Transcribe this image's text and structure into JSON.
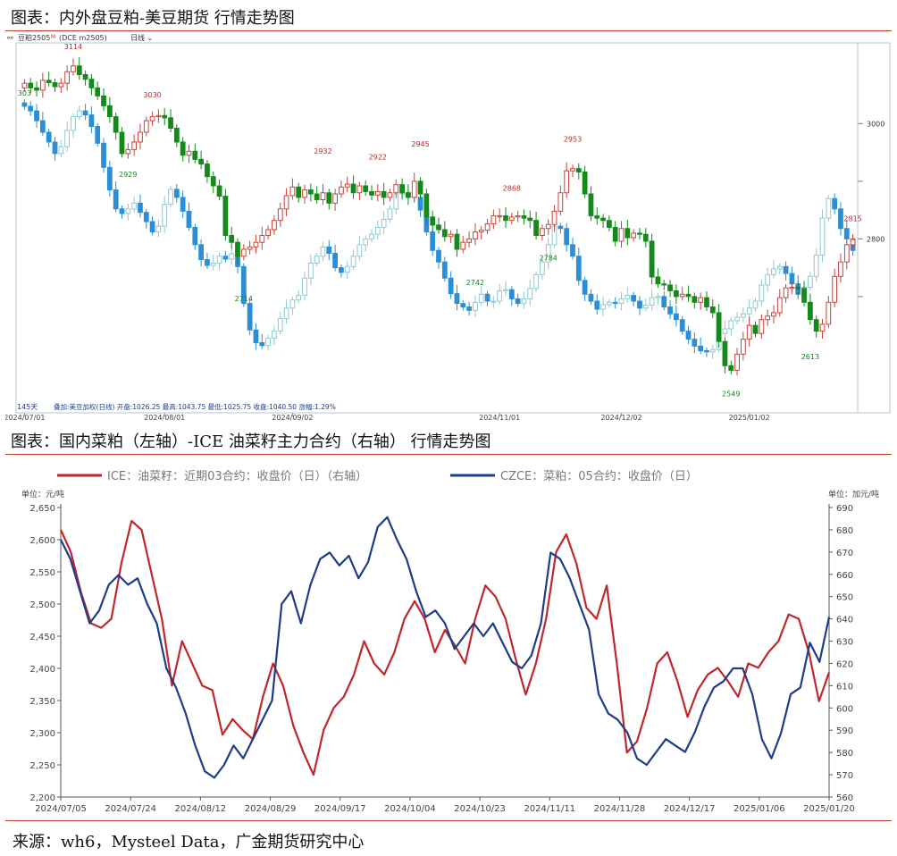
{
  "page": {
    "title1": "图表：内外盘豆粕-美豆期货 行情走势图",
    "title2": "图表：国内菜粕（左轴）-ICE 油菜籽主力合约（右轴） 行情走势图",
    "source": "来源：wh6，Mysteel Data，广金期货研究中心"
  },
  "chart_data": [
    {
      "type": "candlestick",
      "header": "豆粕2505",
      "header_sup": "M",
      "header_code": "(DCE m2505)",
      "header_period": "日线",
      "period_count": "145天",
      "overlay_info": "叠加:美豆加权(日线)  开盘:1026.25 最高:1043.75 最低:1025.75 收盘:1040.50 涨幅:1.29%",
      "y_axis_labels": [
        "3000",
        "2800"
      ],
      "y_ticks": [
        3000,
        2900,
        2800,
        2700
      ],
      "ylim": [
        2520,
        3140
      ],
      "x_labels": [
        "2024/07/01",
        "2024/08/01",
        "2024/09/02",
        "2024/11/01",
        "2024/12/02",
        "2025/01/02"
      ],
      "x_label_index": [
        0,
        23,
        44,
        78,
        98,
        119
      ],
      "annotations": [
        {
          "text": "3114",
          "index": 8,
          "type": "high"
        },
        {
          "text": "3030",
          "index": 21,
          "type": "high"
        },
        {
          "text": "2932",
          "index": 49,
          "type": "high"
        },
        {
          "text": "2922",
          "index": 58,
          "type": "high"
        },
        {
          "text": "2945",
          "index": 65,
          "type": "high"
        },
        {
          "text": "2868",
          "index": 80,
          "type": "high"
        },
        {
          "text": "2953",
          "index": 90,
          "type": "high"
        },
        {
          "text": "2815",
          "index": 136,
          "type": "high"
        },
        {
          "text": "303",
          "index": 0,
          "type": "low"
        },
        {
          "text": "2929",
          "index": 17,
          "type": "low"
        },
        {
          "text": "2714",
          "index": 36,
          "type": "low"
        },
        {
          "text": "2742",
          "index": 74,
          "type": "low"
        },
        {
          "text": "2784",
          "index": 86,
          "type": "low"
        },
        {
          "text": "2549",
          "index": 116,
          "type": "low"
        },
        {
          "text": "2613",
          "index": 129,
          "type": "low"
        }
      ],
      "series": [
        {
          "name": "豆粕2505",
          "close": [
            3070,
            3062,
            3058,
            3075,
            3071,
            3064,
            3070,
            3090,
            3100,
            3085,
            3077,
            3062,
            3048,
            3031,
            3012,
            2985,
            2948,
            2955,
            2968,
            2985,
            3005,
            3012,
            3014,
            3010,
            2992,
            2968,
            2945,
            2952,
            2938,
            2930,
            2908,
            2892,
            2874,
            2806,
            2794,
            2770,
            2782,
            2786,
            2794,
            2806,
            2816,
            2832,
            2852,
            2875,
            2890,
            2872,
            2885,
            2878,
            2868,
            2880,
            2862,
            2878,
            2890,
            2895,
            2880,
            2892,
            2882,
            2876,
            2882,
            2872,
            2880,
            2894,
            2880,
            2872,
            2900,
            2878,
            2838,
            2824,
            2816,
            2804,
            2808,
            2782,
            2794,
            2800,
            2812,
            2815,
            2826,
            2840,
            2840,
            2832,
            2838,
            2840,
            2836,
            2832,
            2806,
            2818,
            2825,
            2848,
            2880,
            2918,
            2922,
            2916,
            2878,
            2840,
            2836,
            2832,
            2820,
            2796,
            2818,
            2802,
            2810,
            2808,
            2796,
            2734,
            2722,
            2720,
            2710,
            2700,
            2704,
            2700,
            2690,
            2698,
            2682,
            2672,
            2622,
            2580,
            2572,
            2600,
            2626,
            2650,
            2636,
            2660,
            2666,
            2672,
            2698,
            2715,
            2716,
            2714,
            2690,
            2660,
            2640,
            2652,
            2690,
            2735,
            2760,
            2790,
            2799
          ]
        },
        {
          "name": "美豆加权",
          "close": [
            3030,
            3022,
            3005,
            2985,
            2968,
            2948,
            2960,
            2988,
            3012,
            3022,
            3015,
            2995,
            2966,
            2924,
            2885,
            2852,
            2844,
            2852,
            2862,
            2846,
            2830,
            2812,
            2822,
            2860,
            2886,
            2872,
            2848,
            2820,
            2790,
            2764,
            2754,
            2758,
            2770,
            2765,
            2774,
            2752,
            2688,
            2642,
            2620,
            2615,
            2628,
            2640,
            2662,
            2680,
            2694,
            2702,
            2732,
            2758,
            2770,
            2786,
            2775,
            2750,
            2742,
            2752,
            2770,
            2790,
            2800,
            2808,
            2820,
            2834,
            2852,
            2878,
            2880,
            2875,
            2872,
            2850,
            2812,
            2780,
            2760,
            2732,
            2705,
            2688,
            2682,
            2676,
            2690,
            2704,
            2692,
            2692,
            2710,
            2712,
            2696,
            2688,
            2696,
            2714,
            2738,
            2760,
            2790,
            2822,
            2818,
            2790,
            2770,
            2728,
            2704,
            2692,
            2678,
            2686,
            2690,
            2688,
            2696,
            2702,
            2692,
            2680,
            2685,
            2698,
            2700,
            2682,
            2670,
            2660,
            2640,
            2626,
            2614,
            2606,
            2604,
            2608,
            2636,
            2644,
            2658,
            2664,
            2670,
            2680,
            2692,
            2720,
            2738,
            2748,
            2752,
            2740,
            2722,
            2704,
            2716,
            2735,
            2772,
            2836,
            2870,
            2852,
            2818,
            2800,
            2780
          ]
        }
      ]
    },
    {
      "type": "line",
      "legend": [
        {
          "name": "ICE：油菜籽：近期03合约：收盘价（日）（右轴）",
          "color": "#c0272d"
        },
        {
          "name": "CZCE：菜粕：05合约：收盘价（日）",
          "color": "#1f3c88"
        }
      ],
      "ylabel_left": "单位：元/吨",
      "ylabel_right": "单位：加元/吨",
      "ylim_left": [
        2200,
        2650
      ],
      "ylim_right": [
        560,
        690
      ],
      "y_ticks_left": [
        "2,200",
        "2,250",
        "2,300",
        "2,350",
        "2,400",
        "2,450",
        "2,500",
        "2,550",
        "2,600",
        "2,650"
      ],
      "y_ticks_right": [
        "560",
        "570",
        "580",
        "590",
        "600",
        "610",
        "620",
        "630",
        "640",
        "650",
        "660",
        "670",
        "680",
        "690"
      ],
      "x_labels": [
        "2024/07/05",
        "2024/07/24",
        "2024/08/12",
        "2024/08/29",
        "2024/09/17",
        "2024/10/04",
        "2024/10/23",
        "2024/11/11",
        "2024/11/28",
        "2024/12/17",
        "2025/01/06",
        "2025/01/20"
      ],
      "series": [
        {
          "name": "ICE：油菜籽：近期03合约：收盘价（日）（右轴）",
          "axis": "right",
          "values": [
            680,
            670,
            652,
            638,
            636,
            640,
            665,
            684,
            680,
            660,
            640,
            610,
            630,
            620,
            610,
            608,
            588,
            595,
            590,
            586,
            605,
            620,
            610,
            592,
            580,
            570,
            590,
            600,
            605,
            615,
            630,
            620,
            615,
            625,
            640,
            648,
            640,
            625,
            635,
            628,
            620,
            640,
            655,
            650,
            640,
            622,
            606,
            620,
            640,
            670,
            678,
            665,
            645,
            640,
            655,
            620,
            580,
            585,
            600,
            620,
            625,
            612,
            596,
            608,
            615,
            618,
            612,
            605,
            620,
            618,
            625,
            630,
            642,
            640,
            625,
            603,
            616
          ]
        },
        {
          "name": "CZCE：菜粕：05合约：收盘价（日）",
          "axis": "left",
          "values": [
            2600,
            2570,
            2520,
            2470,
            2490,
            2530,
            2545,
            2530,
            2540,
            2500,
            2470,
            2400,
            2370,
            2330,
            2280,
            2240,
            2230,
            2250,
            2280,
            2260,
            2290,
            2320,
            2350,
            2500,
            2520,
            2470,
            2530,
            2570,
            2580,
            2560,
            2575,
            2540,
            2565,
            2620,
            2635,
            2600,
            2570,
            2520,
            2480,
            2490,
            2470,
            2430,
            2450,
            2470,
            2450,
            2470,
            2440,
            2410,
            2400,
            2420,
            2470,
            2580,
            2570,
            2540,
            2500,
            2460,
            2360,
            2330,
            2320,
            2300,
            2260,
            2250,
            2270,
            2290,
            2280,
            2270,
            2300,
            2340,
            2370,
            2380,
            2400,
            2400,
            2360,
            2290,
            2260,
            2300,
            2360,
            2370,
            2440,
            2410,
            2480
          ]
        }
      ]
    }
  ]
}
